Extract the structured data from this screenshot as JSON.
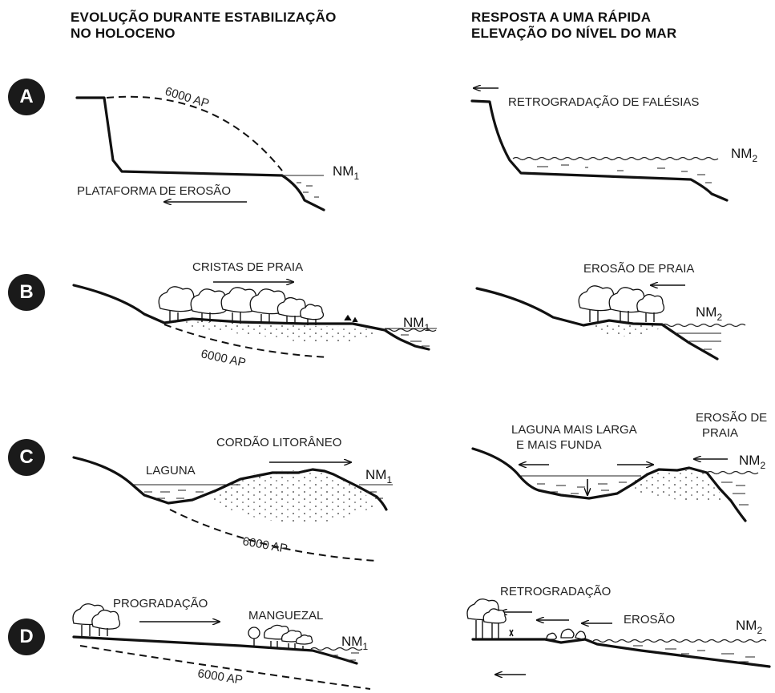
{
  "columns": {
    "left": {
      "line1": "EVOLUÇÃO DURANTE ESTABILIZAÇÃO",
      "line2": "NO HOLOCENO"
    },
    "right": {
      "line1": "RESPOSTA A UMA RÁPIDA",
      "line2": "ELEVAÇÃO DO NÍVEL DO MAR"
    }
  },
  "rows": [
    {
      "id": "A",
      "left": {
        "age": "6000 AP",
        "sea_level": "NM",
        "sea_level_sub": "1",
        "label": "PLATAFORMA DE EROSÃO"
      },
      "right": {
        "label": "RETROGRADAÇÃO DE FALÉSIAS",
        "sea_level": "NM",
        "sea_level_sub": "2"
      }
    },
    {
      "id": "B",
      "left": {
        "label": "CRISTAS DE PRAIA",
        "sea_level": "NM",
        "sea_level_sub": "1",
        "age": "6000 AP"
      },
      "right": {
        "label": "EROSÃO DE PRAIA",
        "sea_level": "NM",
        "sea_level_sub": "2"
      }
    },
    {
      "id": "C",
      "left": {
        "label_lagoon": "LAGUNA",
        "label_barrier": "CORDÃO LITORÂNEO",
        "sea_level": "NM",
        "sea_level_sub": "1",
        "age": "6000 AP"
      },
      "right": {
        "label_lagoon_1": "LAGUNA MAIS LARGA",
        "label_lagoon_2": "E MAIS FUNDA",
        "label_erosion_1": "EROSÃO DE",
        "label_erosion_2": "PRAIA",
        "sea_level": "NM",
        "sea_level_sub": "2"
      }
    },
    {
      "id": "D",
      "left": {
        "label_prog": "PROGRADAÇÃO",
        "label_mangrove": "MANGUEZAL",
        "sea_level": "NM",
        "sea_level_sub": "1",
        "age": "6000 AP"
      },
      "right": {
        "label_retro": "RETROGRADAÇÃO",
        "label_erosion": "EROSÃO",
        "sea_level": "NM",
        "sea_level_sub": "2"
      }
    }
  ]
}
